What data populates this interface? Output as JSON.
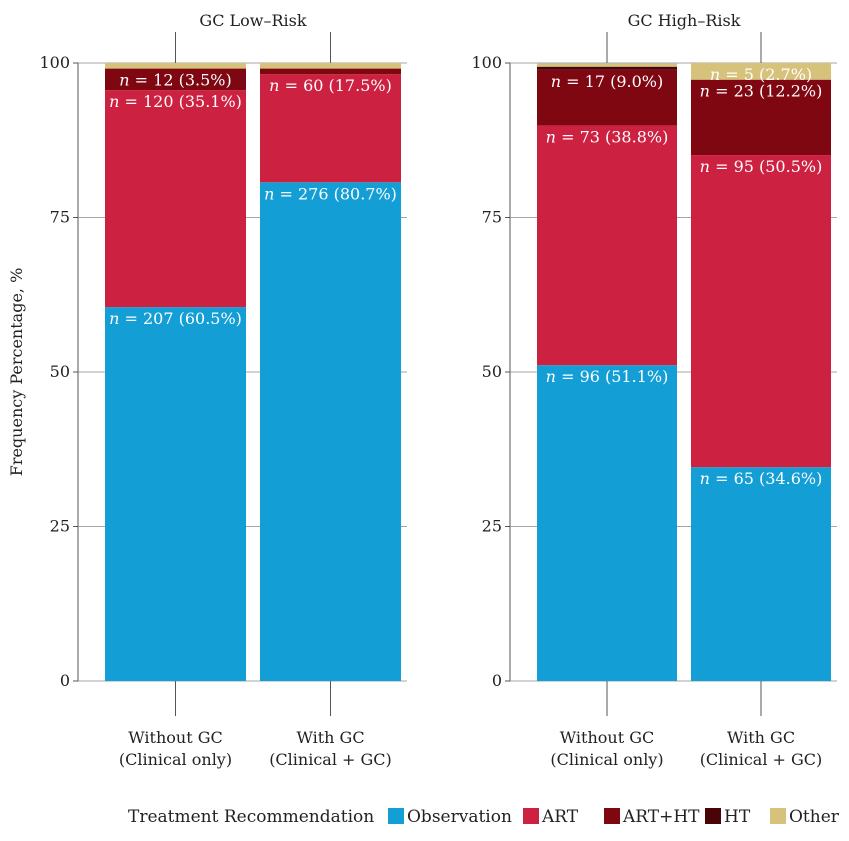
{
  "chart_data": {
    "type": "bar",
    "stacked": true,
    "ylabel": "Frequency Percentage, %",
    "ylim": [
      0,
      100
    ],
    "yticks": [
      0,
      25,
      50,
      75,
      100
    ],
    "grid": false,
    "colors": {
      "Observation": "#139ed6",
      "ART": "#cc2140",
      "ART+HT": "#7e0712",
      "HT": "#4a0306",
      "Other": "#d7c27c"
    },
    "legend": {
      "title": "Treatment Recommendation",
      "placement": "bottom",
      "entries": [
        "Observation",
        "ART",
        "ART+HT",
        "HT",
        "Other"
      ]
    },
    "panels": [
      {
        "title": "GC Low–Risk",
        "categories": [
          "Without GC\n(Clinical only)",
          "With GC\n(Clinical + GC)"
        ],
        "bars": [
          {
            "category": "Without GC\n(Clinical only)",
            "segments": [
              {
                "series": "Observation",
                "value": 60.5,
                "label": "n = 207 (60.5%)"
              },
              {
                "series": "ART",
                "value": 35.1,
                "label": "n = 120 (35.1%)"
              },
              {
                "series": "ART+HT",
                "value": 3.5,
                "label": "n = 12 (3.5%)"
              },
              {
                "series": "HT",
                "value": 0.0,
                "label": ""
              },
              {
                "series": "Other",
                "value": 0.9,
                "label": ""
              }
            ]
          },
          {
            "category": "With GC\n(Clinical + GC)",
            "segments": [
              {
                "series": "Observation",
                "value": 80.7,
                "label": "n = 276 (80.7%)"
              },
              {
                "series": "ART",
                "value": 17.5,
                "label": "n = 60 (17.5%)"
              },
              {
                "series": "ART+HT",
                "value": 0.9,
                "label": ""
              },
              {
                "series": "HT",
                "value": 0.0,
                "label": ""
              },
              {
                "series": "Other",
                "value": 0.9,
                "label": ""
              }
            ]
          }
        ]
      },
      {
        "title": "GC High–Risk",
        "categories": [
          "Without GC\n(Clinical only)",
          "With GC\n(Clinical + GC)"
        ],
        "bars": [
          {
            "category": "Without GC\n(Clinical only)",
            "segments": [
              {
                "series": "Observation",
                "value": 51.1,
                "label": "n = 96 (51.1%)"
              },
              {
                "series": "ART",
                "value": 38.8,
                "label": "n = 73 (38.8%)"
              },
              {
                "series": "ART+HT",
                "value": 9.0,
                "label": "n = 17 (9.0%)"
              },
              {
                "series": "HT",
                "value": 0.5,
                "label": ""
              },
              {
                "series": "Other",
                "value": 0.5,
                "label": ""
              }
            ]
          },
          {
            "category": "With GC\n(Clinical + GC)",
            "segments": [
              {
                "series": "Observation",
                "value": 34.6,
                "label": "n = 65 (34.6%)"
              },
              {
                "series": "ART",
                "value": 50.5,
                "label": "n = 95 (50.5%)"
              },
              {
                "series": "ART+HT",
                "value": 12.2,
                "label": "n = 23 (12.2%)"
              },
              {
                "series": "HT",
                "value": 0.0,
                "label": ""
              },
              {
                "series": "Other",
                "value": 2.7,
                "label": "n = 5 (2.7%)"
              }
            ]
          }
        ]
      }
    ]
  }
}
